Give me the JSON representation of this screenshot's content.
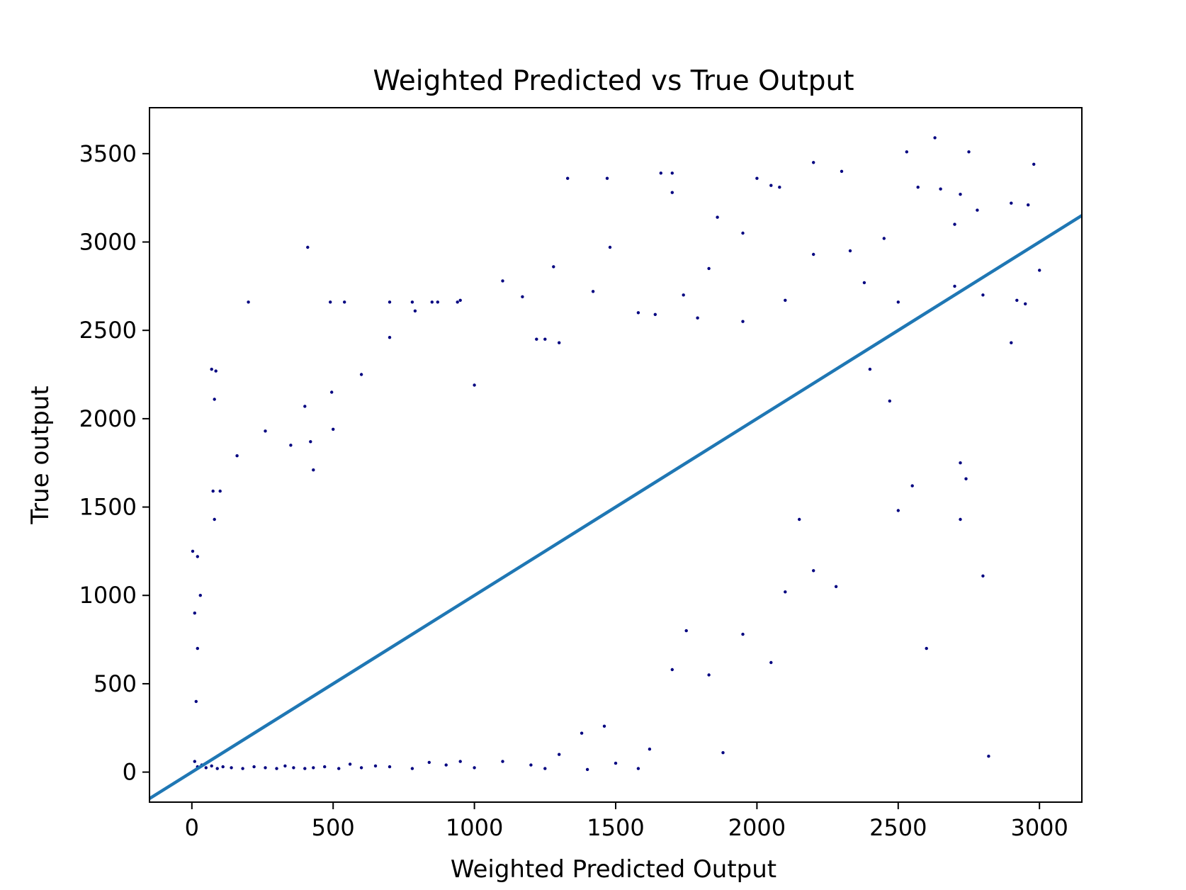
{
  "chart_data": {
    "type": "scatter",
    "title": "Weighted Predicted vs True Output",
    "xlabel": "Weighted Predicted Output",
    "ylabel": "True output",
    "xlim": [
      -150,
      3150
    ],
    "ylim": [
      -170,
      3760
    ],
    "xticks": [
      0,
      500,
      1000,
      1500,
      2000,
      2500,
      3000
    ],
    "yticks": [
      0,
      500,
      1000,
      1500,
      2000,
      2500,
      3000,
      3500
    ],
    "grid": false,
    "legend": "none",
    "scatter_color": "#000080",
    "line_color": "#1f77b4",
    "reference_line": {
      "x": [
        -150,
        3150
      ],
      "y": [
        -150,
        3150
      ]
    },
    "series": [
      {
        "values_note_points": [
          [
            3,
            1250
          ],
          [
            20,
            1220
          ],
          [
            30,
            1000
          ],
          [
            75,
            1590
          ],
          [
            80,
            1430
          ],
          [
            70,
            2280
          ],
          [
            85,
            2270
          ],
          [
            80,
            2110
          ],
          [
            100,
            1590
          ],
          [
            160,
            1790
          ],
          [
            200,
            2660
          ],
          [
            260,
            1930
          ],
          [
            350,
            1850
          ],
          [
            400,
            2070
          ],
          [
            410,
            2970
          ],
          [
            420,
            1870
          ],
          [
            430,
            1710
          ],
          [
            495,
            2150
          ],
          [
            500,
            1940
          ],
          [
            490,
            2660
          ],
          [
            540,
            2660
          ],
          [
            600,
            2250
          ],
          [
            700,
            2460
          ],
          [
            700,
            2660
          ],
          [
            780,
            2660
          ],
          [
            790,
            2610
          ],
          [
            850,
            2660
          ],
          [
            870,
            2660
          ],
          [
            940,
            2660
          ],
          [
            950,
            2670
          ],
          [
            1000,
            2190
          ],
          [
            1100,
            2780
          ],
          [
            1170,
            2690
          ],
          [
            1220,
            2450
          ],
          [
            1250,
            2450
          ],
          [
            1280,
            2860
          ],
          [
            1300,
            2430
          ],
          [
            1330,
            3360
          ],
          [
            1470,
            3360
          ],
          [
            1480,
            2970
          ],
          [
            1420,
            2720
          ],
          [
            1580,
            2600
          ],
          [
            1640,
            2590
          ],
          [
            1660,
            3390
          ],
          [
            1700,
            3390
          ],
          [
            1700,
            3280
          ],
          [
            1740,
            2700
          ],
          [
            1790,
            2570
          ],
          [
            1830,
            2850
          ],
          [
            1860,
            3140
          ],
          [
            1950,
            3050
          ],
          [
            1950,
            2550
          ],
          [
            2000,
            3360
          ],
          [
            2050,
            3320
          ],
          [
            2080,
            3310
          ],
          [
            2100,
            2670
          ],
          [
            2200,
            3450
          ],
          [
            2200,
            2930
          ],
          [
            2300,
            3400
          ],
          [
            2330,
            2950
          ],
          [
            2380,
            2770
          ],
          [
            2450,
            3020
          ],
          [
            2500,
            2660
          ],
          [
            2530,
            3510
          ],
          [
            2570,
            3310
          ],
          [
            2630,
            3590
          ],
          [
            2650,
            3300
          ],
          [
            2700,
            2750
          ],
          [
            2750,
            3510
          ],
          [
            2780,
            3180
          ],
          [
            2800,
            2700
          ],
          [
            2900,
            2430
          ],
          [
            2920,
            2670
          ],
          [
            2950,
            2650
          ],
          [
            2980,
            3440
          ],
          [
            3000,
            2840
          ],
          [
            2900,
            3220
          ],
          [
            2960,
            3210
          ],
          [
            2720,
            3270
          ],
          [
            2700,
            3100
          ],
          [
            2720,
            1750
          ],
          [
            2740,
            1660
          ],
          [
            2720,
            1430
          ],
          [
            2800,
            1110
          ],
          [
            2820,
            90
          ],
          [
            2600,
            700
          ],
          [
            2550,
            1620
          ],
          [
            2500,
            1480
          ],
          [
            2470,
            2100
          ],
          [
            2400,
            2280
          ],
          [
            2280,
            1050
          ],
          [
            2200,
            1140
          ],
          [
            2150,
            1430
          ],
          [
            2100,
            1020
          ],
          [
            2050,
            620
          ],
          [
            1950,
            780
          ],
          [
            1880,
            110
          ],
          [
            1830,
            550
          ],
          [
            1750,
            800
          ],
          [
            1700,
            580
          ],
          [
            1620,
            130
          ],
          [
            1580,
            20
          ],
          [
            1500,
            50
          ],
          [
            1400,
            15
          ],
          [
            1460,
            260
          ],
          [
            1380,
            220
          ],
          [
            1300,
            100
          ],
          [
            1250,
            20
          ],
          [
            1200,
            40
          ],
          [
            1100,
            60
          ],
          [
            1000,
            25
          ],
          [
            950,
            60
          ],
          [
            900,
            40
          ],
          [
            840,
            55
          ],
          [
            780,
            20
          ],
          [
            700,
            30
          ],
          [
            650,
            35
          ],
          [
            600,
            25
          ],
          [
            560,
            45
          ],
          [
            520,
            20
          ],
          [
            470,
            30
          ],
          [
            430,
            25
          ],
          [
            400,
            20
          ],
          [
            360,
            25
          ],
          [
            330,
            35
          ],
          [
            300,
            20
          ],
          [
            260,
            25
          ],
          [
            220,
            30
          ],
          [
            180,
            20
          ],
          [
            140,
            25
          ],
          [
            110,
            30
          ],
          [
            90,
            20
          ],
          [
            70,
            35
          ],
          [
            50,
            25
          ],
          [
            35,
            40
          ],
          [
            20,
            30
          ],
          [
            10,
            60
          ],
          [
            15,
            400
          ],
          [
            20,
            700
          ],
          [
            10,
            900
          ]
        ]
      }
    ]
  }
}
